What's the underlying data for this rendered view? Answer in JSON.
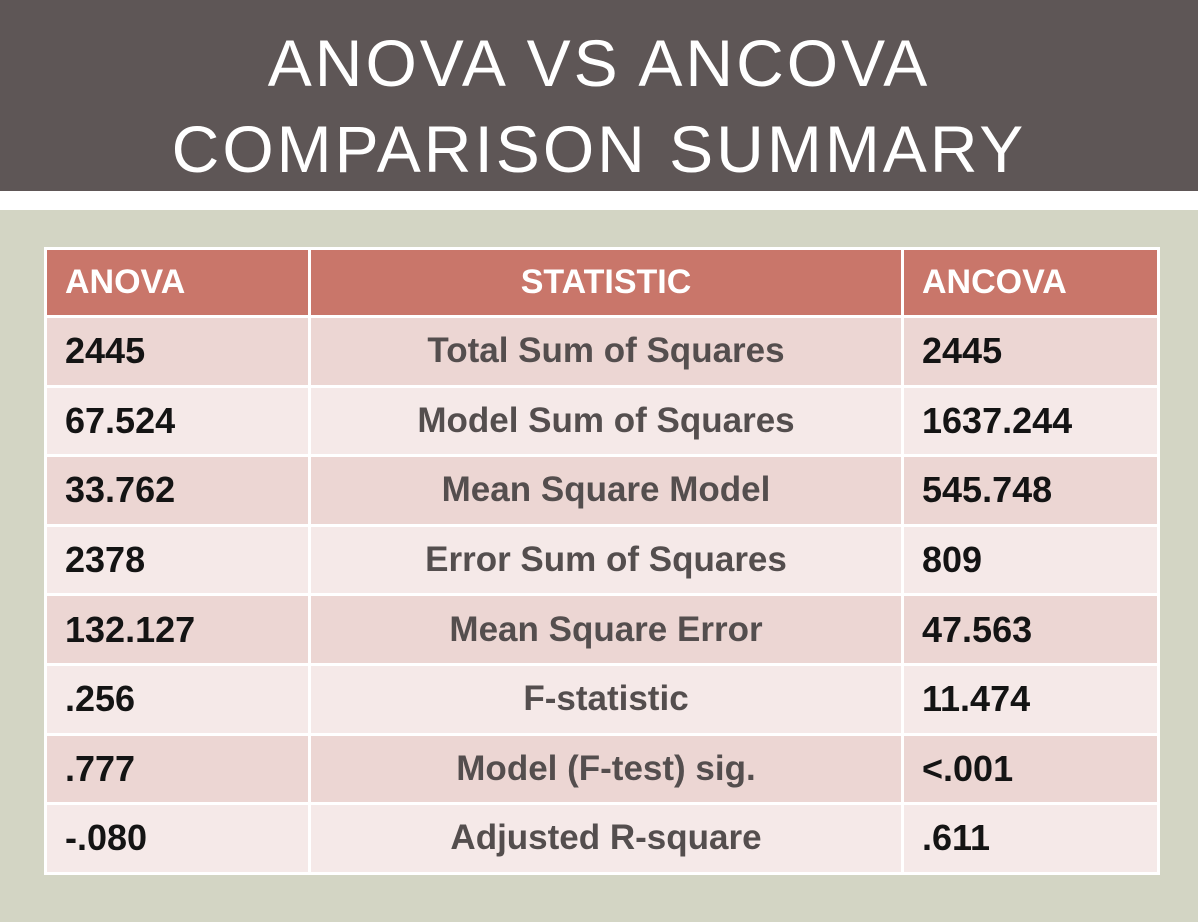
{
  "slide": {
    "title_line1": "ANOVA VS ANCOVA",
    "title_line2": "COMPARISON SUMMARY"
  },
  "table": {
    "headers": [
      "ANOVA",
      "STATISTIC",
      "ANCOVA"
    ],
    "rows": [
      {
        "anova": "2445",
        "statistic": "Total Sum of Squares",
        "ancova": "2445"
      },
      {
        "anova": "67.524",
        "statistic": "Model Sum of Squares",
        "ancova": "1637.244"
      },
      {
        "anova": "33.762",
        "statistic": "Mean Square Model",
        "ancova": "545.748"
      },
      {
        "anova": "2378",
        "statistic": "Error Sum of Squares",
        "ancova": "809"
      },
      {
        "anova": "132.127",
        "statistic": "Mean Square Error",
        "ancova": "47.563"
      },
      {
        "anova": ".256",
        "statistic": "F-statistic",
        "ancova": "11.474"
      },
      {
        "anova": ".777",
        "statistic": "Model (F-test) sig.",
        "ancova": "<.001"
      },
      {
        "anova": "-.080",
        "statistic": "Adjusted R-square",
        "ancova": ".611"
      }
    ]
  },
  "colors": {
    "title_band": "#5e5656",
    "background": "#d3d5c4",
    "header_row": "#c9766a",
    "row_dark": "#ecd6d3",
    "row_light": "#f5e9e8"
  }
}
